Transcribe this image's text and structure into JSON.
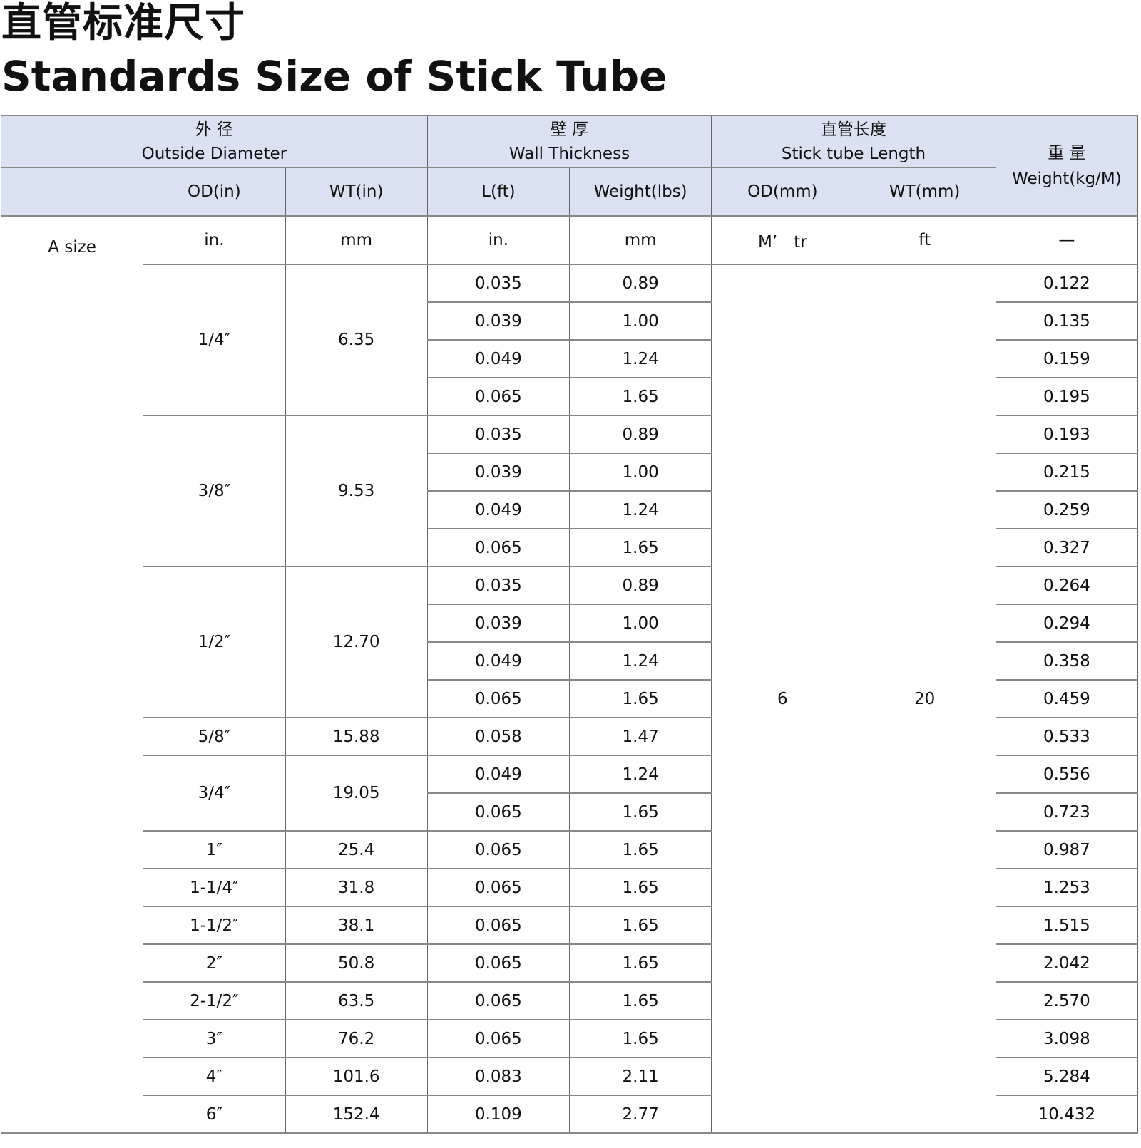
{
  "title_cn": "直管标准尺寸",
  "title_en": "Standards Size of Stick Tube",
  "header": {
    "outside_diameter_cn": "外 径",
    "outside_diameter_en": "Outside Diameter",
    "wall_thickness_cn": "壁 厚",
    "wall_thickness_en": "Wall Thickness",
    "length_cn": "直管长度",
    "length_en": "Stick tube Length",
    "weight_cn": "重 量",
    "weight_en": "Weight(kg/M)",
    "sub": [
      "OD(in)",
      "WT(in)",
      "L(ft)",
      "Weight(lbs)",
      "OD(mm)",
      "WT(mm)"
    ]
  },
  "units": {
    "size_label": "A size",
    "cols": [
      "in.",
      "mm",
      "in.",
      "mm",
      "M’　tr",
      "ft",
      "—"
    ]
  },
  "length_m": "6",
  "length_ft": "20",
  "groups": [
    {
      "od_in": "1/4″",
      "od_mm": "6.35",
      "rows": [
        [
          "0.035",
          "0.89",
          "0.122"
        ],
        [
          "0.039",
          "1.00",
          "0.135"
        ],
        [
          "0.049",
          "1.24",
          "0.159"
        ],
        [
          "0.065",
          "1.65",
          "0.195"
        ]
      ]
    },
    {
      "od_in": "3/8″",
      "od_mm": "9.53",
      "rows": [
        [
          "0.035",
          "0.89",
          "0.193"
        ],
        [
          "0.039",
          "1.00",
          "0.215"
        ],
        [
          "0.049",
          "1.24",
          "0.259"
        ],
        [
          "0.065",
          "1.65",
          "0.327"
        ]
      ]
    },
    {
      "od_in": "1/2″",
      "od_mm": "12.70",
      "rows": [
        [
          "0.035",
          "0.89",
          "0.264"
        ],
        [
          "0.039",
          "1.00",
          "0.294"
        ],
        [
          "0.049",
          "1.24",
          "0.358"
        ],
        [
          "0.065",
          "1.65",
          "0.459"
        ]
      ]
    },
    {
      "od_in": "5/8″",
      "od_mm": "15.88",
      "rows": [
        [
          "0.058",
          "1.47",
          "0.533"
        ]
      ]
    },
    {
      "od_in": "3/4″",
      "od_mm": "19.05",
      "rows": [
        [
          "0.049",
          "1.24",
          "0.556"
        ],
        [
          "0.065",
          "1.65",
          "0.723"
        ]
      ]
    },
    {
      "od_in": "1″",
      "od_mm": "25.4",
      "rows": [
        [
          "0.065",
          "1.65",
          "0.987"
        ]
      ]
    },
    {
      "od_in": "1-1/4″",
      "od_mm": "31.8",
      "rows": [
        [
          "0.065",
          "1.65",
          "1.253"
        ]
      ]
    },
    {
      "od_in": "1-1/2″",
      "od_mm": "38.1",
      "rows": [
        [
          "0.065",
          "1.65",
          "1.515"
        ]
      ]
    },
    {
      "od_in": "2″",
      "od_mm": "50.8",
      "rows": [
        [
          "0.065",
          "1.65",
          "2.042"
        ]
      ]
    },
    {
      "od_in": "2-1/2″",
      "od_mm": "63.5",
      "rows": [
        [
          "0.065",
          "1.65",
          "2.570"
        ]
      ]
    },
    {
      "od_in": "3″",
      "od_mm": "76.2",
      "rows": [
        [
          "0.065",
          "1.65",
          "3.098"
        ]
      ]
    },
    {
      "od_in": "4″",
      "od_mm": "101.6",
      "rows": [
        [
          "0.083",
          "2.11",
          "5.284"
        ]
      ]
    },
    {
      "od_in": "6″",
      "od_mm": "152.4",
      "rows": [
        [
          "0.109",
          "2.77",
          "10.432"
        ]
      ]
    }
  ],
  "colors": {
    "header_bg": "#d9e1f2",
    "border": "#666666"
  }
}
